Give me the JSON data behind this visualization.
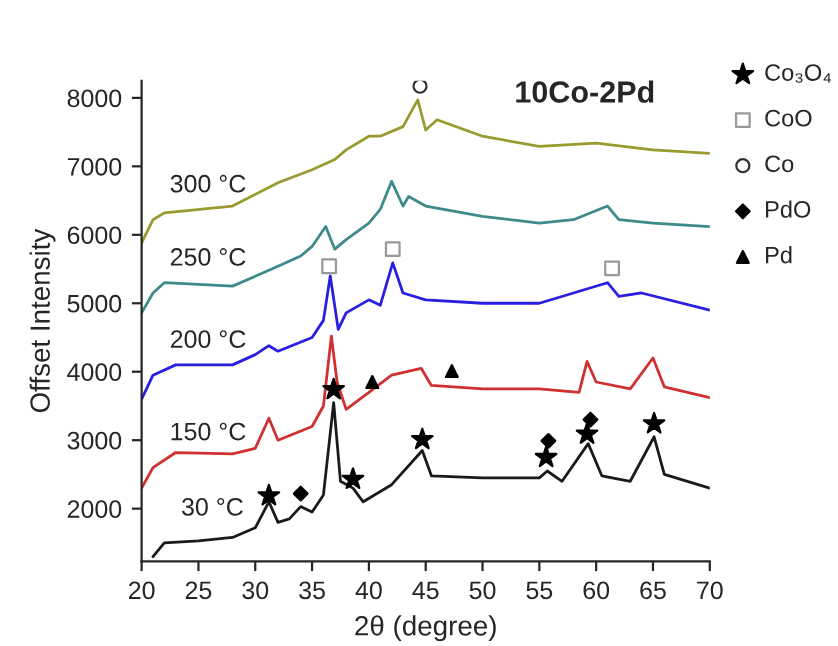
{
  "chart_data": {
    "type": "line",
    "title": "10Co-2Pd",
    "xlabel": "2θ (degree)",
    "ylabel": "Offset Intensity",
    "xlim": [
      20,
      70
    ],
    "xticks": [
      20,
      25,
      30,
      35,
      40,
      45,
      50,
      55,
      60,
      65,
      70
    ],
    "ylim": [
      1230,
      8250
    ],
    "yticks": [
      2000,
      3000,
      4000,
      5000,
      6000,
      7000,
      8000
    ],
    "grid": false,
    "legend": "right",
    "series": [
      {
        "name": "30 °C",
        "color": "#1a1a1a",
        "x": [
          21,
          22,
          25,
          28,
          30,
          31.2,
          32,
          33,
          34,
          35,
          36,
          36.9,
          37.5,
          38.6,
          39.5,
          42,
          44.7,
          45.5,
          50,
          55,
          55.7,
          57,
          59.3,
          60.5,
          63,
          65.1,
          66,
          70
        ],
        "values": [
          1300,
          1500,
          1530,
          1580,
          1720,
          2100,
          1800,
          1850,
          2030,
          1950,
          2200,
          3550,
          2400,
          2300,
          2100,
          2350,
          2850,
          2480,
          2450,
          2450,
          2550,
          2400,
          2950,
          2480,
          2400,
          3050,
          2500,
          2300
        ]
      },
      {
        "name": "150 °C",
        "color": "#d03030",
        "x": [
          20,
          21,
          23,
          28,
          30,
          31.2,
          32,
          35,
          36,
          36.7,
          37.2,
          38,
          40,
          42,
          44.6,
          45.5,
          50,
          55,
          58.5,
          59.2,
          60,
          63,
          65,
          66,
          70
        ],
        "values": [
          2300,
          2600,
          2820,
          2800,
          2880,
          3320,
          3000,
          3200,
          3500,
          4520,
          3850,
          3450,
          3700,
          3950,
          4050,
          3800,
          3750,
          3750,
          3700,
          4150,
          3850,
          3750,
          4200,
          3780,
          3620
        ]
      },
      {
        "name": "200 °C",
        "color": "#2a1ee0",
        "x": [
          20,
          21,
          23,
          28,
          30,
          31.2,
          32,
          35,
          36,
          36.6,
          37.3,
          38,
          40,
          41,
          42.1,
          43,
          45,
          50,
          55,
          58,
          61,
          62,
          64,
          70
        ],
        "values": [
          3600,
          3950,
          4100,
          4100,
          4250,
          4380,
          4300,
          4500,
          4750,
          5400,
          4620,
          4860,
          5050,
          4970,
          5590,
          5150,
          5050,
          5000,
          5000,
          5150,
          5300,
          5100,
          5150,
          4900
        ]
      },
      {
        "name": "250 °C",
        "color": "#3f8a8a",
        "x": [
          20,
          21,
          22,
          28,
          32,
          34,
          35,
          36.2,
          37,
          38,
          40,
          41,
          42,
          43,
          43.5,
          45,
          50,
          55,
          58,
          61,
          62,
          65,
          70
        ],
        "values": [
          4860,
          5150,
          5300,
          5250,
          5540,
          5690,
          5830,
          6120,
          5790,
          5930,
          6170,
          6370,
          6780,
          6420,
          6560,
          6420,
          6270,
          6170,
          6220,
          6420,
          6220,
          6170,
          6120
        ]
      },
      {
        "name": "300 °C",
        "color": "#9a9a30",
        "x": [
          20,
          21,
          22,
          28,
          32,
          35,
          37,
          38,
          40,
          41,
          43,
          44.3,
          45,
          46,
          50,
          55,
          60,
          65,
          70
        ],
        "values": [
          5880,
          6220,
          6320,
          6420,
          6760,
          6950,
          7100,
          7240,
          7440,
          7440,
          7580,
          7970,
          7530,
          7680,
          7440,
          7290,
          7340,
          7240,
          7190
        ]
      },
      {
        "type": "scatter",
        "name": "Co₃O₄",
        "marker": "star",
        "color": "#000000",
        "x": [
          31.2,
          36.9,
          38.6,
          44.7,
          55.6,
          59.2,
          65.1
        ],
        "values": [
          2190,
          3740,
          2430,
          3010,
          2750,
          3090,
          3240
        ]
      },
      {
        "type": "scatter",
        "name": "CoO",
        "marker": "square",
        "color": "#999999",
        "x": [
          36.5,
          42.1,
          61.4
        ],
        "values": [
          5540,
          5790,
          5510
        ]
      },
      {
        "type": "scatter",
        "name": "Co",
        "marker": "circle",
        "color": "#333333",
        "x": [
          44.5
        ],
        "values": [
          8170
        ]
      },
      {
        "type": "scatter",
        "name": "PdO",
        "marker": "diamond",
        "color": "#000000",
        "x": [
          34,
          55.8,
          59.5
        ],
        "values": [
          2220,
          2990,
          3300
        ]
      },
      {
        "type": "scatter",
        "name": "Pd",
        "marker": "triangle",
        "color": "#000000",
        "x": [
          40.3,
          47.3
        ],
        "values": [
          3850,
          4010
        ]
      }
    ]
  }
}
